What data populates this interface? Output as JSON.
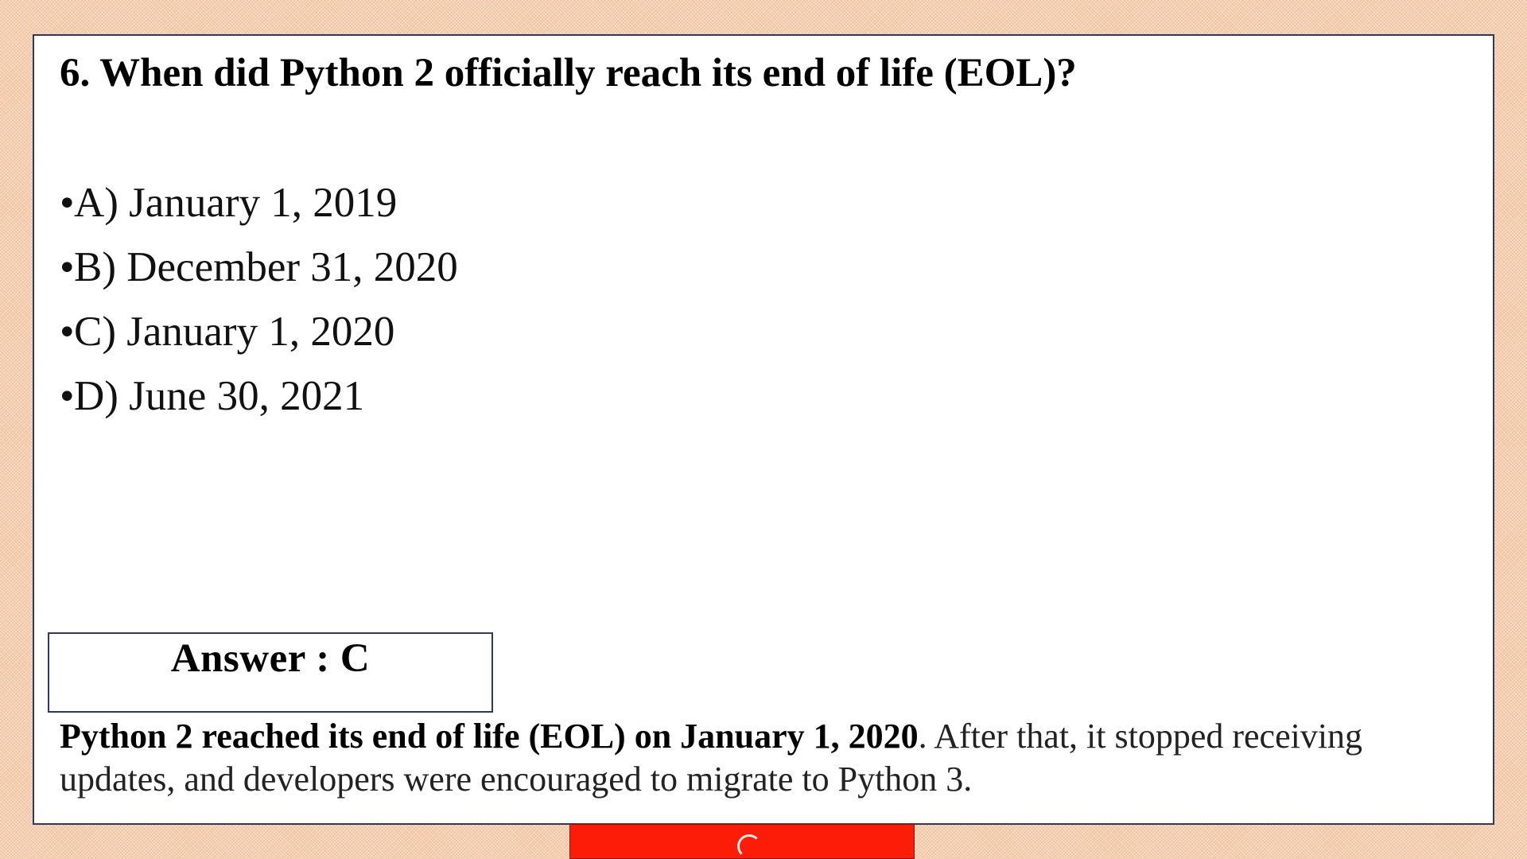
{
  "question": {
    "text": "6. When did Python 2 officially reach its end of life (EOL)?"
  },
  "options": [
    {
      "bullet": "•",
      "text": "A) January 1, 2019"
    },
    {
      "bullet": "•",
      "text": "B) December 31, 2020"
    },
    {
      "bullet": "•",
      "text": "C) January 1, 2020"
    },
    {
      "bullet": "•",
      "text": "D) June 30, 2021"
    }
  ],
  "answer": {
    "text": "Answer : C"
  },
  "explanation": {
    "bold": "Python 2 reached its end of life (EOL) on January 1, 2020",
    "rest": ". After that, it stopped receiving updates, and developers were encouraged to migrate to Python 3."
  },
  "colors": {
    "background": "#f2c29e",
    "slide": "#ffffff",
    "border": "#2b3a5e",
    "red_tab": "#fc1c07"
  }
}
